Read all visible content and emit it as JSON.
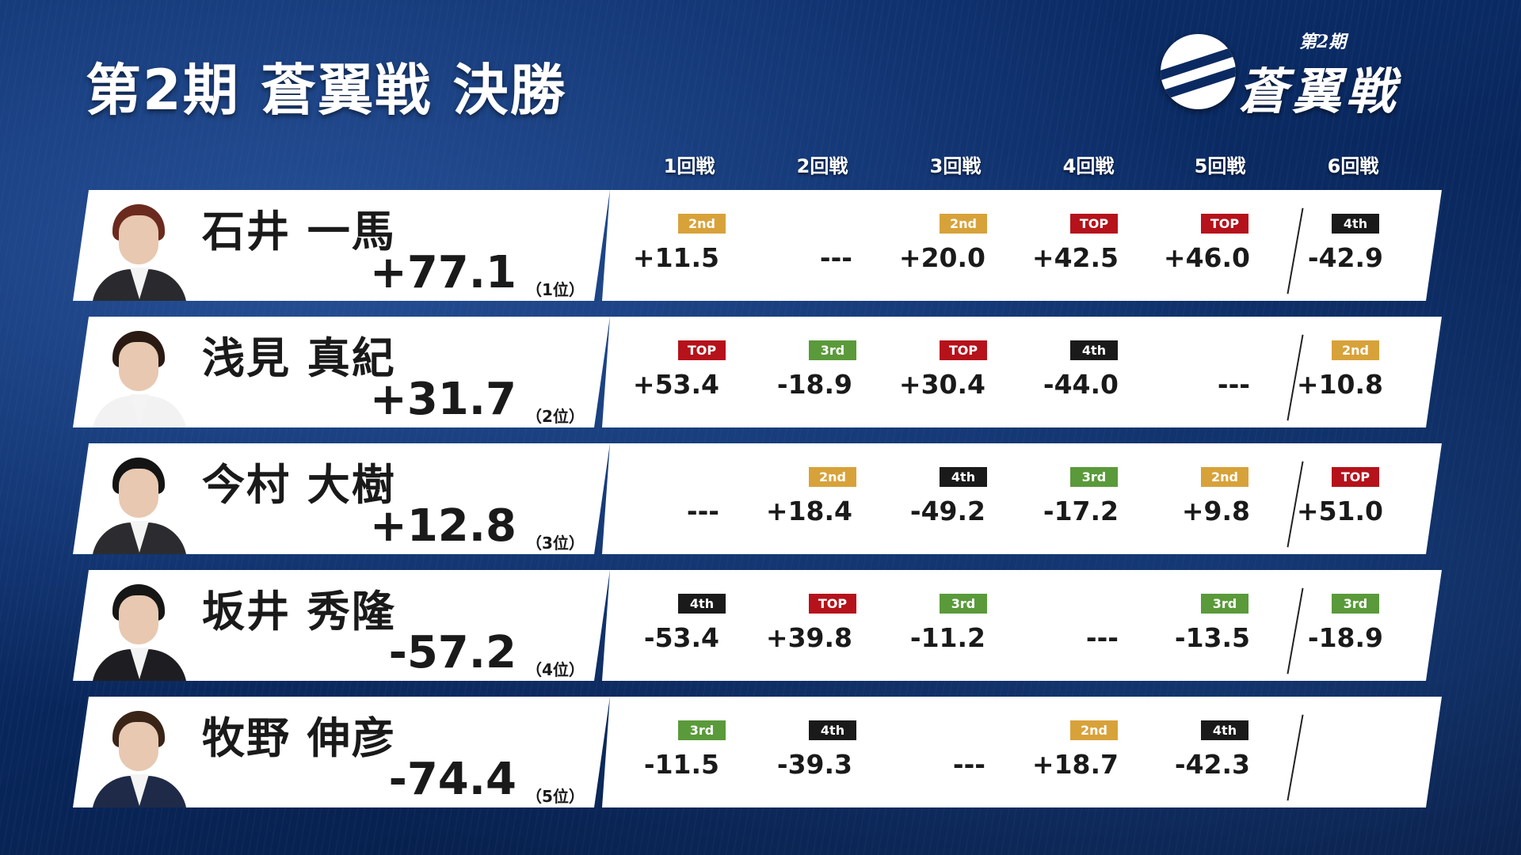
{
  "title": "第2期 蒼翼戦 決勝",
  "logo": {
    "sub": "第2期",
    "text": "蒼翼戦"
  },
  "columns": [
    "1回戦",
    "2回戦",
    "3回戦",
    "4回戦",
    "5回戦",
    "6回戦"
  ],
  "badge_colors": {
    "TOP": "#b5121b",
    "2nd": "#d8a23a",
    "3rd": "#5a9a3a",
    "4th": "#1a1a1a"
  },
  "players": [
    {
      "name": "石井 一馬",
      "total": "+77.1",
      "rank": "（1位）",
      "avatar": {
        "hair": "#6b2a1e",
        "suit": "#2a2a2e"
      },
      "games": [
        {
          "badge": "2nd",
          "score": "+11.5"
        },
        {
          "badge": "",
          "score": "---"
        },
        {
          "badge": "2nd",
          "score": "+20.0"
        },
        {
          "badge": "TOP",
          "score": "+42.5"
        },
        {
          "badge": "TOP",
          "score": "+46.0"
        },
        {
          "badge": "4th",
          "score": "-42.9"
        }
      ]
    },
    {
      "name": "浅見 真紀",
      "total": "+31.7",
      "rank": "（2位）",
      "avatar": {
        "hair": "#2a1a14",
        "suit": "#f2f2f2"
      },
      "games": [
        {
          "badge": "TOP",
          "score": "+53.4"
        },
        {
          "badge": "3rd",
          "score": "-18.9"
        },
        {
          "badge": "TOP",
          "score": "+30.4"
        },
        {
          "badge": "4th",
          "score": "-44.0"
        },
        {
          "badge": "",
          "score": "---"
        },
        {
          "badge": "2nd",
          "score": "+10.8"
        }
      ]
    },
    {
      "name": "今村 大樹",
      "total": "+12.8",
      "rank": "（3位）",
      "avatar": {
        "hair": "#141414",
        "suit": "#2c2c30"
      },
      "games": [
        {
          "badge": "",
          "score": "---"
        },
        {
          "badge": "2nd",
          "score": "+18.4"
        },
        {
          "badge": "4th",
          "score": "-49.2"
        },
        {
          "badge": "3rd",
          "score": "-17.2"
        },
        {
          "badge": "2nd",
          "score": "+9.8"
        },
        {
          "badge": "TOP",
          "score": "+51.0"
        }
      ]
    },
    {
      "name": "坂井 秀隆",
      "total": "-57.2",
      "rank": "（4位）",
      "avatar": {
        "hair": "#161616",
        "suit": "#1e1e22"
      },
      "games": [
        {
          "badge": "4th",
          "score": "-53.4"
        },
        {
          "badge": "TOP",
          "score": "+39.8"
        },
        {
          "badge": "3rd",
          "score": "-11.2"
        },
        {
          "badge": "",
          "score": "---"
        },
        {
          "badge": "3rd",
          "score": "-13.5"
        },
        {
          "badge": "3rd",
          "score": "-18.9"
        }
      ]
    },
    {
      "name": "牧野 伸彦",
      "total": "-74.4",
      "rank": "（5位）",
      "avatar": {
        "hair": "#3a2418",
        "suit": "#1f2a48"
      },
      "games": [
        {
          "badge": "3rd",
          "score": "-11.5"
        },
        {
          "badge": "4th",
          "score": "-39.3"
        },
        {
          "badge": "",
          "score": "---"
        },
        {
          "badge": "2nd",
          "score": "+18.7"
        },
        {
          "badge": "4th",
          "score": "-42.3"
        },
        {
          "badge": "",
          "score": ""
        }
      ]
    }
  ]
}
